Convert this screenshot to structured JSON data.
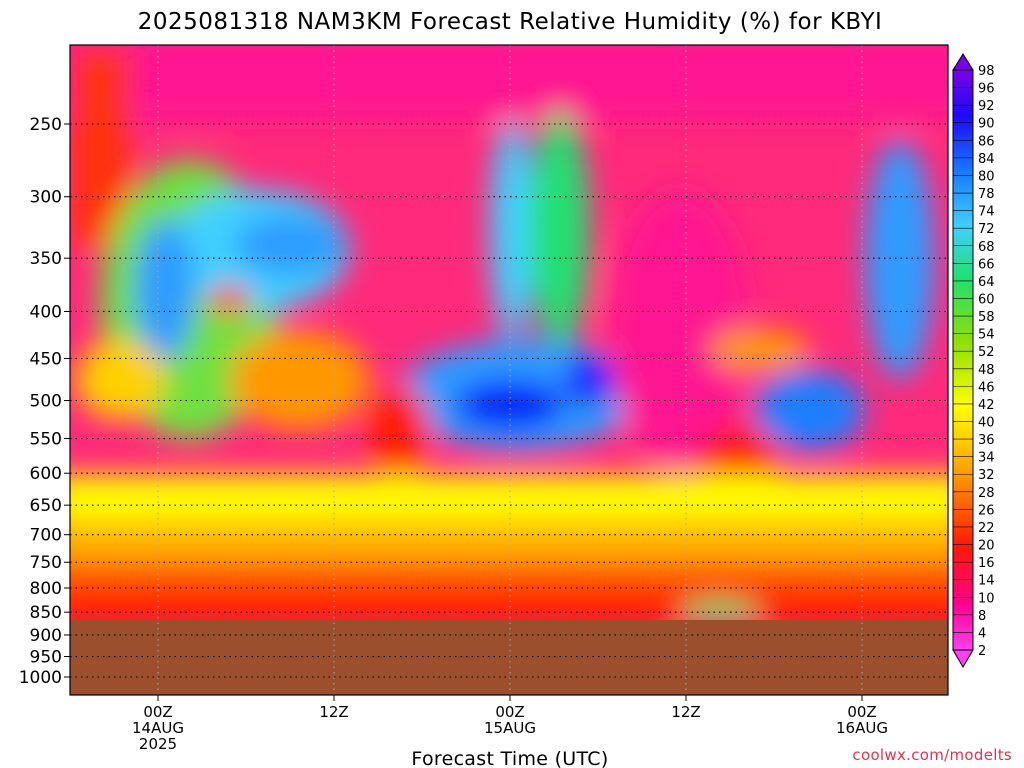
{
  "chart_data": {
    "type": "heatmap",
    "title": "2025081318 NAM3KM Forecast Relative Humidity (%) for KBYI",
    "xlabel": "Forecast Time (UTC)",
    "ylabel": "",
    "y_scale": "log-pressure",
    "y_axis_inverted": true,
    "y_ticks": [
      250,
      300,
      350,
      400,
      450,
      500,
      550,
      600,
      650,
      700,
      750,
      800,
      850,
      900,
      950,
      1000
    ],
    "y_tick_labels": [
      "250",
      "300",
      "350",
      "400",
      "450",
      "500",
      "550",
      "600",
      "650",
      "700",
      "750",
      "800",
      "850",
      "900",
      "950",
      "1000"
    ],
    "x_ticks": [
      {
        "lines": [
          "00Z",
          "14AUG",
          "2025"
        ]
      },
      {
        "lines": [
          "12Z"
        ]
      },
      {
        "lines": [
          "00Z",
          "15AUG"
        ]
      },
      {
        "lines": [
          "12Z"
        ]
      },
      {
        "lines": [
          "00Z",
          "16AUG"
        ]
      }
    ],
    "grid": true,
    "colorbar": {
      "labels": [
        "98",
        "96",
        "92",
        "90",
        "86",
        "84",
        "80",
        "78",
        "74",
        "72",
        "68",
        "66",
        "64",
        "60",
        "58",
        "54",
        "52",
        "48",
        "46",
        "42",
        "40",
        "36",
        "34",
        "32",
        "28",
        "26",
        "22",
        "20",
        "16",
        "14",
        "10",
        "8",
        "4",
        "2"
      ],
      "colors": [
        "#7a00e6",
        "#6800cc",
        "#4a00e8",
        "#1d0aff",
        "#0024ff",
        "#0040ff",
        "#0060ff",
        "#1a7fff",
        "#2e9bff",
        "#37b4ff",
        "#40d0ff",
        "#30f0e0",
        "#20e8b0",
        "#20e070",
        "#40e040",
        "#66e020",
        "#90e000",
        "#b8e800",
        "#ddf000",
        "#ffff00",
        "#ffe800",
        "#ffd000",
        "#ffb400",
        "#ff9800",
        "#ff7a00",
        "#ff5a00",
        "#ff3800",
        "#ff1a00",
        "#ff0030",
        "#ff0060",
        "#ff0090",
        "#ff10b8",
        "#ff20d8",
        "#ff40f0"
      ]
    },
    "ground_color": "#9b4f2d"
  },
  "credit": "coolwx.com/modelts"
}
